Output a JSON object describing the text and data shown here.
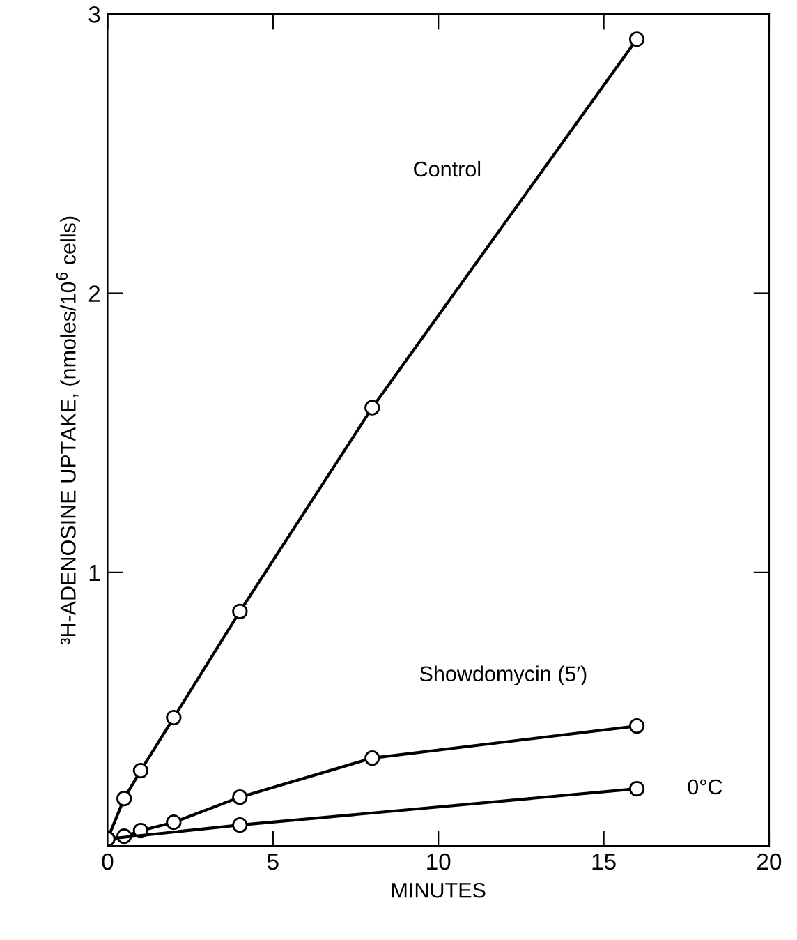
{
  "chart_data": {
    "type": "line",
    "xlabel": "MINUTES",
    "ylabel": "³H-ADENOSINE UPTAKE, (nmoles/10$^{6}$ cells)",
    "xlim": [
      0,
      20
    ],
    "ylim": [
      0.02,
      3
    ],
    "xticks": [
      0,
      5,
      10,
      15,
      20
    ],
    "yticks": [
      1,
      2,
      3
    ],
    "marker": "circle",
    "line_style": "solid",
    "series": [
      {
        "name": "Control",
        "color": "#000000",
        "x": [
          0,
          0.5,
          1,
          2,
          4,
          8,
          16
        ],
        "values": [
          0.045,
          0.19,
          0.29,
          0.48,
          0.86,
          1.59,
          2.91
        ]
      },
      {
        "name": "Showdomycin (5′)",
        "color": "#000000",
        "x": [
          0,
          0.5,
          1,
          2,
          4,
          8,
          16
        ],
        "values": [
          0.045,
          0.055,
          0.075,
          0.105,
          0.195,
          0.335,
          0.45
        ]
      },
      {
        "name": "0°C",
        "color": "#000000",
        "x": [
          0,
          4,
          16
        ],
        "values": [
          0.045,
          0.095,
          0.225
        ]
      }
    ]
  }
}
